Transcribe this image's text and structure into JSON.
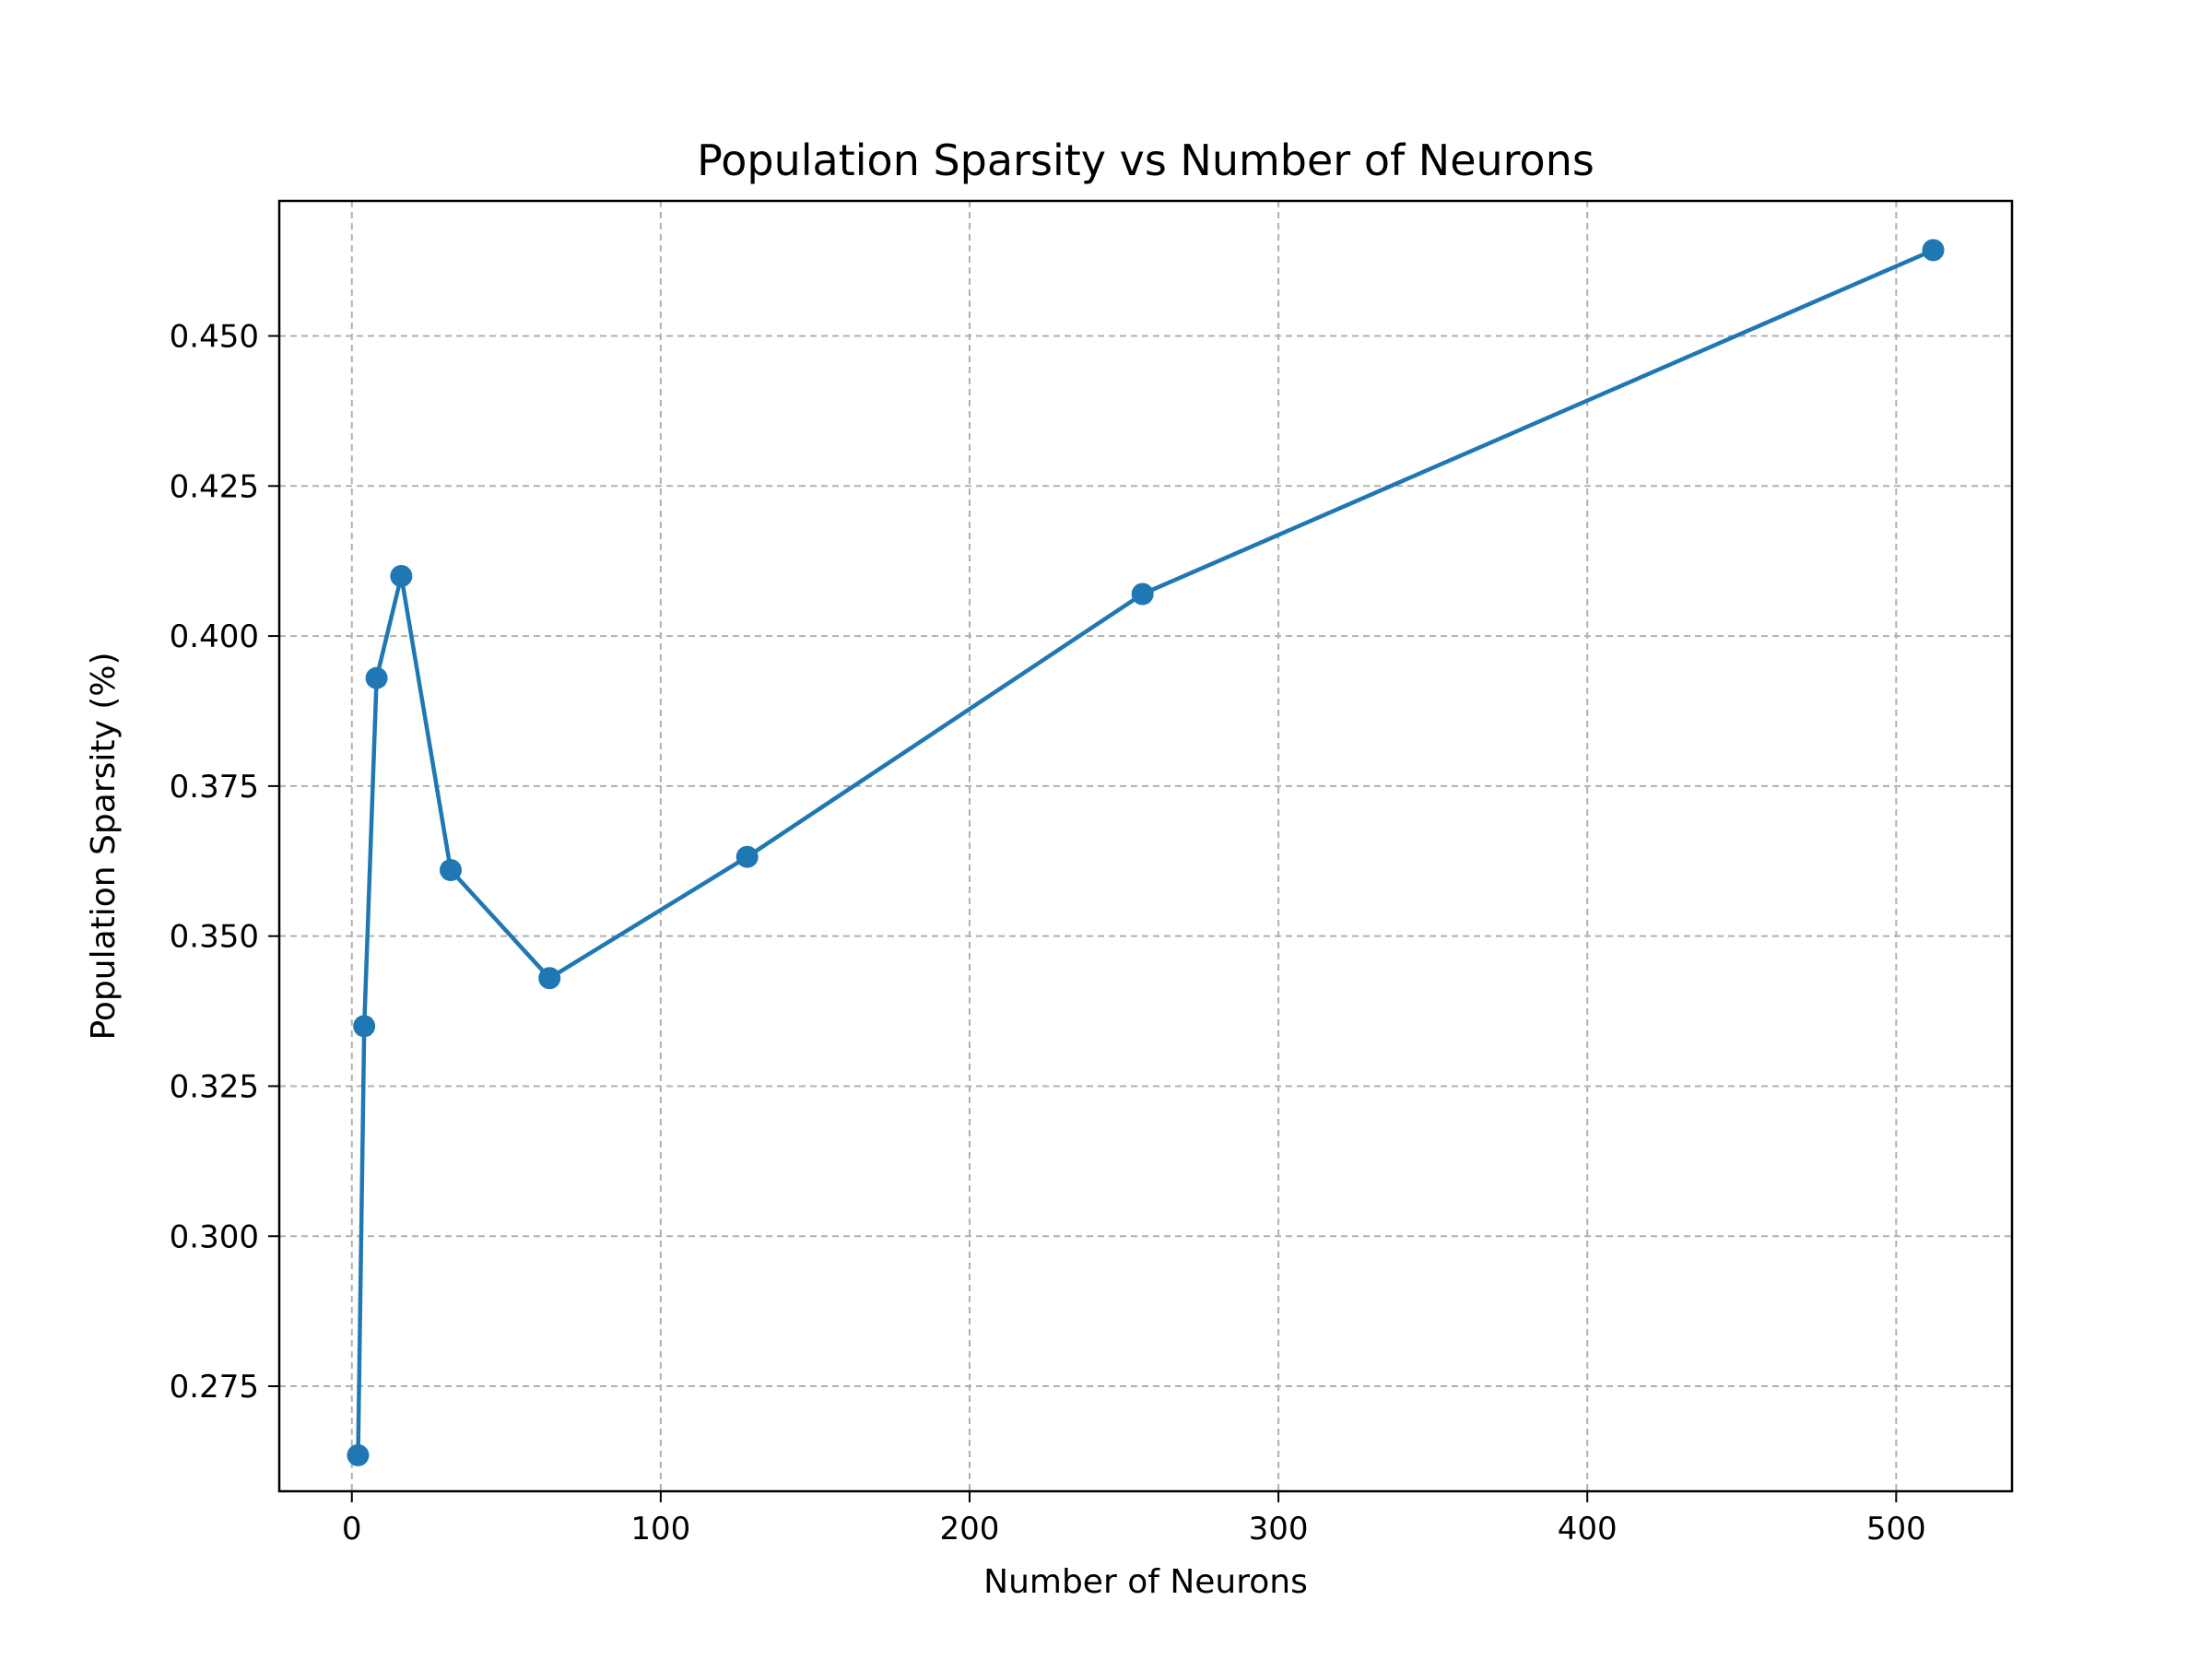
{
  "chart_data": {
    "type": "line",
    "title": "Population Sparsity vs Number of Neurons",
    "xlabel": "Number of Neurons",
    "ylabel": "Population Sparsity (%)",
    "xlim": [
      -23.5,
      537.5
    ],
    "ylim": [
      0.2575,
      0.4725
    ],
    "x_ticks": [
      0,
      100,
      200,
      300,
      400,
      500
    ],
    "y_ticks": [
      0.275,
      0.3,
      0.325,
      0.35,
      0.375,
      0.4,
      0.425,
      0.45
    ],
    "x_tick_labels": [
      "0",
      "100",
      "200",
      "300",
      "400",
      "500"
    ],
    "y_tick_labels": [
      "0.275",
      "0.300",
      "0.325",
      "0.350",
      "0.375",
      "0.400",
      "0.425",
      "0.450"
    ],
    "grid": true,
    "series": [
      {
        "color": "#1f77b4",
        "marker": "circle",
        "x": [
          2,
          4,
          8,
          16,
          32,
          64,
          128,
          256,
          512
        ],
        "y": [
          0.2635,
          0.335,
          0.393,
          0.41,
          0.361,
          0.343,
          0.3632,
          0.407,
          0.4643
        ]
      }
    ]
  }
}
